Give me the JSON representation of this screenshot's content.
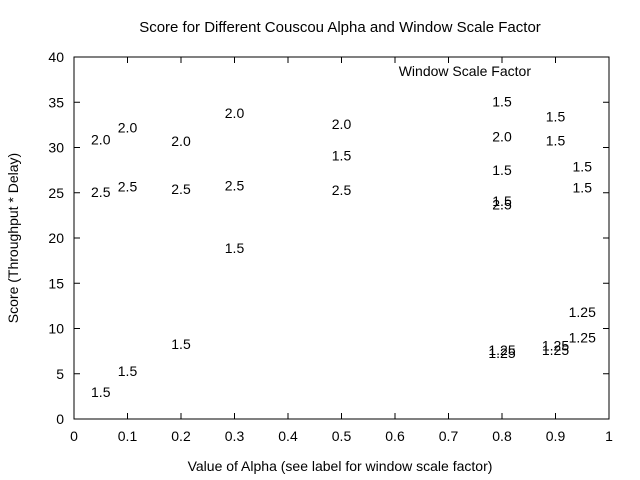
{
  "chart_data": {
    "type": "scatter",
    "title": "Score for Different Couscou Alpha and Window Scale Factor",
    "xlabel": "Value of Alpha (see label for window scale factor)",
    "ylabel": "Score (Throughput * Delay)",
    "xlim": [
      0,
      1
    ],
    "ylim": [
      0,
      40
    ],
    "xticks": [
      "0",
      "0.1",
      "0.2",
      "0.3",
      "0.4",
      "0.5",
      "0.6",
      "0.7",
      "0.8",
      "0.9",
      "1"
    ],
    "yticks": [
      "0",
      "5",
      "10",
      "15",
      "20",
      "25",
      "30",
      "35",
      "40"
    ],
    "grid": false,
    "legend_title": "Window Scale Factor",
    "legend_position": "top-right",
    "points": [
      {
        "x": 0.05,
        "y": 3,
        "label": "1.5"
      },
      {
        "x": 0.1,
        "y": 5.3,
        "label": "1.5"
      },
      {
        "x": 0.2,
        "y": 8.3,
        "label": "1.5"
      },
      {
        "x": 0.3,
        "y": 18.9,
        "label": "1.5"
      },
      {
        "x": 0.5,
        "y": 29.1,
        "label": "1.5"
      },
      {
        "x": 0.8,
        "y": 35.1,
        "label": "1.5"
      },
      {
        "x": 0.8,
        "y": 27.5,
        "label": "1.5"
      },
      {
        "x": 0.8,
        "y": 24.1,
        "label": "1.5"
      },
      {
        "x": 0.9,
        "y": 33.4,
        "label": "1.5"
      },
      {
        "x": 0.9,
        "y": 30.8,
        "label": "1.5"
      },
      {
        "x": 0.95,
        "y": 27.9,
        "label": "1.5"
      },
      {
        "x": 0.95,
        "y": 25.6,
        "label": "1.5"
      },
      {
        "x": 0.05,
        "y": 30.9,
        "label": "2.0"
      },
      {
        "x": 0.1,
        "y": 32.2,
        "label": "2.0"
      },
      {
        "x": 0.2,
        "y": 30.7,
        "label": "2.0"
      },
      {
        "x": 0.3,
        "y": 33.8,
        "label": "2.0"
      },
      {
        "x": 0.5,
        "y": 32.6,
        "label": "2.0"
      },
      {
        "x": 0.8,
        "y": 31.2,
        "label": "2.0"
      },
      {
        "x": 0.05,
        "y": 25.1,
        "label": "2.5"
      },
      {
        "x": 0.1,
        "y": 25.7,
        "label": "2.5"
      },
      {
        "x": 0.2,
        "y": 25.4,
        "label": "2.5"
      },
      {
        "x": 0.3,
        "y": 25.8,
        "label": "2.5"
      },
      {
        "x": 0.5,
        "y": 25.3,
        "label": "2.5"
      },
      {
        "x": 0.8,
        "y": 23.7,
        "label": "2.5"
      },
      {
        "x": 0.8,
        "y": 7.6,
        "label": "1.25"
      },
      {
        "x": 0.8,
        "y": 7.3,
        "label": "1.25"
      },
      {
        "x": 0.9,
        "y": 8.1,
        "label": "1.25"
      },
      {
        "x": 0.9,
        "y": 7.6,
        "label": "1.25"
      },
      {
        "x": 0.95,
        "y": 11.8,
        "label": "1.25"
      },
      {
        "x": 0.95,
        "y": 9.0,
        "label": "1.25"
      }
    ]
  }
}
